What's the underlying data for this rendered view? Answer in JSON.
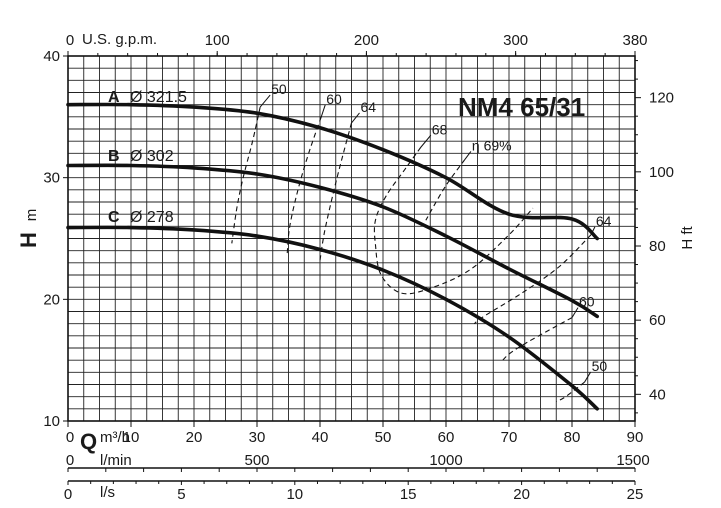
{
  "chart_data": {
    "type": "line",
    "title": "NM4 65/31",
    "xlabel": "Q",
    "ylabel_left": "H m",
    "ylabel_right": "H ft",
    "x_axis_primary": {
      "unit": "m³/h",
      "range": [
        0,
        90
      ],
      "ticks": [
        "0",
        "10",
        "20",
        "30",
        "40",
        "50",
        "60",
        "70",
        "80",
        "90"
      ]
    },
    "x_axis_lmin": {
      "unit": "l/min",
      "range": [
        0,
        1500
      ],
      "ticks": [
        "0",
        "500",
        "1000",
        "1500"
      ]
    },
    "x_axis_ls": {
      "unit": "l/s",
      "range": [
        0,
        25
      ],
      "ticks": [
        "0",
        "5",
        "10",
        "15",
        "20",
        "25"
      ]
    },
    "x_axis_usgpm": {
      "unit": "U.S. g.p.m.",
      "range": [
        0,
        380
      ],
      "ticks": [
        "0",
        "100",
        "200",
        "300",
        "380"
      ]
    },
    "y_axis_left": {
      "unit": "m",
      "range": [
        10,
        40
      ],
      "ticks": [
        "10",
        "20",
        "30",
        "40"
      ]
    },
    "y_axis_right": {
      "unit": "ft",
      "ticks": [
        "40",
        "60",
        "80",
        "100",
        "120"
      ]
    },
    "grid": true,
    "series": [
      {
        "name": "A",
        "diameter": "Ø 321.5",
        "x": [
          0,
          10,
          20,
          30,
          40,
          50,
          60,
          70,
          80,
          84
        ],
        "y": [
          36,
          36,
          35.8,
          35.3,
          34.1,
          32.3,
          30,
          27,
          26.6,
          25
        ]
      },
      {
        "name": "B",
        "diameter": "Ø 302",
        "x": [
          0,
          10,
          20,
          30,
          40,
          50,
          60,
          70,
          80,
          84
        ],
        "y": [
          31,
          31,
          30.8,
          30.3,
          29.2,
          27.6,
          25.2,
          22.5,
          19.9,
          18.6
        ]
      },
      {
        "name": "C",
        "diameter": "Ø 278",
        "x": [
          0,
          10,
          20,
          30,
          40,
          50,
          60,
          70,
          80,
          84
        ],
        "y": [
          25.9,
          25.9,
          25.7,
          25.2,
          24.1,
          22.4,
          20,
          16.9,
          12.9,
          11
        ]
      }
    ],
    "efficiency_curves": [
      {
        "label": "50",
        "x": [
          30.5,
          29.3,
          27.8,
          26.8,
          26.0
        ],
        "y": [
          35.8,
          33.0,
          30.0,
          27.5,
          24.6
        ]
      },
      {
        "label": "60",
        "x": [
          40.2,
          38.2,
          36.5,
          35.2,
          34.8
        ],
        "y": [
          35.0,
          32.0,
          29.0,
          26.0,
          23.8
        ]
      },
      {
        "label": "64",
        "x": [
          45.0,
          43.2,
          42.0,
          40.7,
          40.0
        ],
        "y": [
          34.5,
          31.0,
          28.5,
          25.5,
          23.2
        ]
      },
      {
        "label": "68",
        "x": [
          56.0,
          53.5,
          50.5,
          48.8,
          48.8,
          49.7,
          53.0,
          58.0,
          64.0,
          70.0,
          73.8
        ],
        "y": [
          32.5,
          30.7,
          28.5,
          26.5,
          24.5,
          22.0,
          20.5,
          21.0,
          22.5,
          25.3,
          27.5
        ]
      },
      {
        "label": "η 69%",
        "x": [
          63.0,
          59.8,
          56.8
        ],
        "y": [
          31.5,
          29.2,
          26.5
        ]
      },
      {
        "label": "64",
        "x": [
          83.0,
          78.0,
          72.0,
          66.0,
          64.5
        ],
        "y": [
          25.3,
          22.7,
          20.5,
          18.6,
          18.0
        ]
      },
      {
        "label": "60",
        "x": [
          80.0,
          73.0,
          70.0,
          68.7
        ],
        "y": [
          18.5,
          16.5,
          15.5,
          14.8
        ]
      },
      {
        "label": "50",
        "x": [
          82.0,
          79.0,
          77.5
        ],
        "y": [
          13.2,
          12.0,
          11.6
        ]
      }
    ]
  },
  "labels": {
    "title": "NM4 65/31",
    "q_letter": "Q",
    "h_left": "H",
    "h_left_unit": "m",
    "h_right": "H ft",
    "unit_m3h": "m³/h",
    "unit_lmin": "l/min",
    "unit_ls": "l/s",
    "unit_usgpm": "U.S. g.p.m.",
    "curve_a_letter": "A",
    "curve_a_diam": "Ø 321.5",
    "curve_b_letter": "B",
    "curve_b_diam": "Ø 302",
    "curve_c_letter": "C",
    "curve_c_diam": "Ø 278"
  }
}
